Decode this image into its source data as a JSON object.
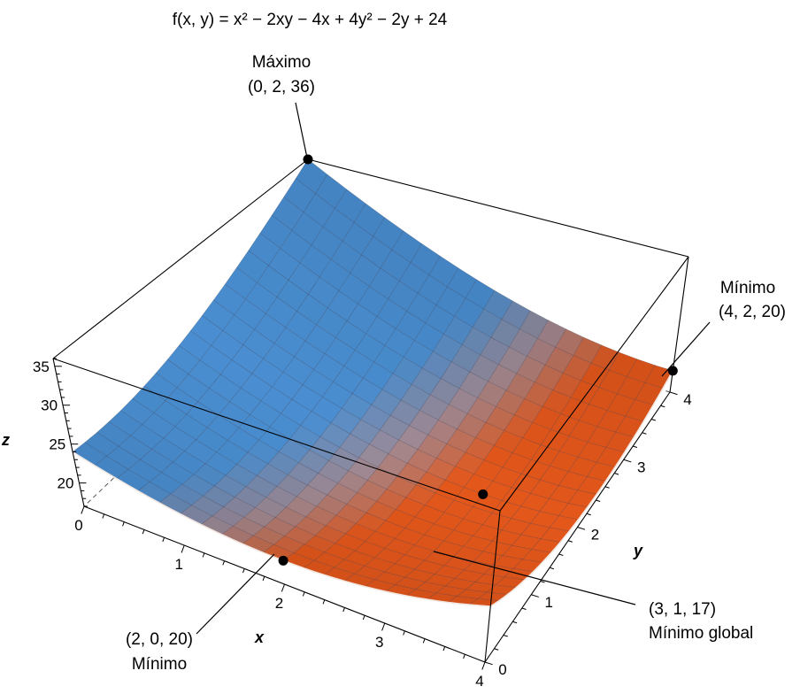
{
  "chart_data": {
    "type": "surface3d",
    "title": "f(x, y) = x² − 2xy − 4x + 4y² − 2y + 24",
    "function": "x^2 - 2xy - 4x + 4y^2 - 2y + 24",
    "xlabel": "x",
    "ylabel": "y",
    "zlabel": "z",
    "x_ticks": [
      "0",
      "1",
      "2",
      "3",
      "4"
    ],
    "y_ticks": [
      "0",
      "1",
      "2",
      "3",
      "4"
    ],
    "z_ticks": [
      "20",
      "25",
      "30",
      "35"
    ],
    "xlim": [
      0,
      4
    ],
    "ylim": [
      0,
      4
    ],
    "zlim": [
      17,
      36
    ],
    "colors": {
      "high": "#4a8fd2",
      "low": "#e4571b",
      "mid": "#a08a94"
    },
    "annotations": [
      {
        "title": "Máximo",
        "coords": "(0, 2, 36)"
      },
      {
        "title": "Mínimo",
        "coords": "(4, 2, 20)"
      },
      {
        "title": "Mínimo global",
        "coords": "(3, 1, 17)"
      },
      {
        "title": "Mínimo",
        "coords": "(2, 0, 20)"
      }
    ]
  }
}
